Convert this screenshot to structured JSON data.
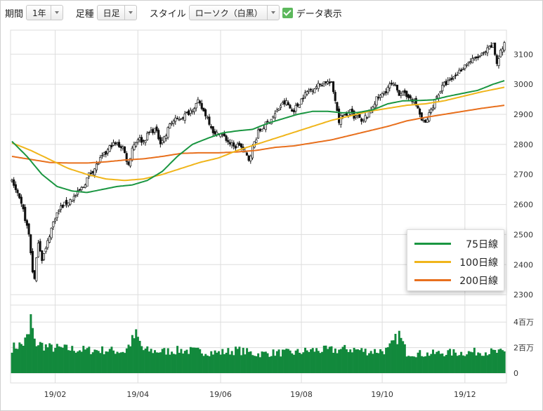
{
  "toolbar": {
    "period_label": "期間",
    "period_value": "1年",
    "bar_label": "足種",
    "bar_value": "日足",
    "style_label": "スタイル",
    "style_value": "ローソク（白黒）",
    "show_data_label": "データ表示",
    "show_data_checked": true
  },
  "colors": {
    "ma75": "#1a9641",
    "ma100": "#f0b51a",
    "ma200": "#e8701e",
    "volume": "#12893c",
    "grid": "#dddddd"
  },
  "chart_data": {
    "type": "candlestick",
    "x_ticks": [
      "19/02",
      "19/04",
      "19/06",
      "19/08",
      "19/10",
      "19/12"
    ],
    "price_axis": {
      "ticks": [
        2300,
        2400,
        2500,
        2600,
        2700,
        2800,
        2900,
        3000,
        3100
      ],
      "range": [
        2270,
        3180
      ]
    },
    "volume_axis": {
      "tick_labels": [
        "4百万",
        "2百万",
        "0"
      ],
      "tick_values": [
        4,
        2,
        0
      ],
      "unit": "百万",
      "range": [
        0,
        5
      ]
    },
    "legend": [
      {
        "label": "75日線",
        "color": "#1a9641"
      },
      {
        "label": "100日線",
        "color": "#f0b51a"
      },
      {
        "label": "200日線",
        "color": "#e8701e"
      }
    ],
    "close_anchors": [
      [
        0,
        2680
      ],
      [
        3,
        2630
      ],
      [
        6,
        2580
      ],
      [
        9,
        2500
      ],
      [
        11,
        2380
      ],
      [
        12,
        2350
      ],
      [
        14,
        2480
      ],
      [
        16,
        2420
      ],
      [
        18,
        2450
      ],
      [
        20,
        2500
      ],
      [
        23,
        2560
      ],
      [
        26,
        2590
      ],
      [
        30,
        2610
      ],
      [
        34,
        2630
      ],
      [
        38,
        2660
      ],
      [
        41,
        2700
      ],
      [
        44,
        2720
      ],
      [
        47,
        2750
      ],
      [
        50,
        2770
      ],
      [
        53,
        2800
      ],
      [
        56,
        2800
      ],
      [
        59,
        2790
      ],
      [
        62,
        2730
      ],
      [
        64,
        2790
      ],
      [
        67,
        2820
      ],
      [
        70,
        2810
      ],
      [
        73,
        2840
      ],
      [
        76,
        2850
      ],
      [
        79,
        2810
      ],
      [
        82,
        2830
      ],
      [
        84,
        2870
      ],
      [
        87,
        2880
      ],
      [
        90,
        2890
      ],
      [
        93,
        2900
      ],
      [
        96,
        2920
      ],
      [
        99,
        2940
      ],
      [
        101,
        2920
      ],
      [
        104,
        2890
      ],
      [
        106,
        2860
      ],
      [
        108,
        2830
      ],
      [
        110,
        2840
      ],
      [
        112,
        2830
      ],
      [
        115,
        2810
      ],
      [
        118,
        2790
      ],
      [
        121,
        2800
      ],
      [
        124,
        2770
      ],
      [
        126,
        2750
      ],
      [
        128,
        2790
      ],
      [
        131,
        2840
      ],
      [
        134,
        2860
      ],
      [
        137,
        2880
      ],
      [
        140,
        2900
      ],
      [
        143,
        2930
      ],
      [
        146,
        2940
      ],
      [
        149,
        2910
      ],
      [
        152,
        2930
      ],
      [
        155,
        2960
      ],
      [
        158,
        2980
      ],
      [
        161,
        2990
      ],
      [
        164,
        3000
      ],
      [
        167,
        3010
      ],
      [
        170,
        3000
      ],
      [
        172,
        2950
      ],
      [
        174,
        2880
      ],
      [
        176,
        2900
      ],
      [
        178,
        2890
      ],
      [
        180,
        2920
      ],
      [
        182,
        2880
      ],
      [
        184,
        2900
      ],
      [
        186,
        2870
      ],
      [
        188,
        2890
      ],
      [
        190,
        2900
      ],
      [
        192,
        2930
      ],
      [
        194,
        2950
      ],
      [
        196,
        2960
      ],
      [
        198,
        2970
      ],
      [
        200,
        2990
      ],
      [
        202,
        3000
      ],
      [
        204,
        2990
      ],
      [
        206,
        2970
      ],
      [
        208,
        2980
      ],
      [
        210,
        2950
      ],
      [
        212,
        2960
      ],
      [
        214,
        2940
      ],
      [
        216,
        2920
      ],
      [
        218,
        2880
      ],
      [
        220,
        2870
      ],
      [
        222,
        2900
      ],
      [
        224,
        2930
      ],
      [
        226,
        2960
      ],
      [
        228,
        2980
      ],
      [
        230,
        3000
      ],
      [
        233,
        3010
      ],
      [
        236,
        3030
      ],
      [
        239,
        3050
      ],
      [
        242,
        3070
      ],
      [
        245,
        3080
      ],
      [
        248,
        3090
      ],
      [
        251,
        3100
      ],
      [
        254,
        3120
      ],
      [
        256,
        3130
      ],
      [
        258,
        3070
      ],
      [
        260,
        3110
      ],
      [
        262,
        3130
      ]
    ],
    "ma75_anchors": [
      [
        0,
        2810
      ],
      [
        8,
        2760
      ],
      [
        16,
        2700
      ],
      [
        24,
        2660
      ],
      [
        32,
        2645
      ],
      [
        40,
        2640
      ],
      [
        48,
        2650
      ],
      [
        56,
        2660
      ],
      [
        64,
        2665
      ],
      [
        72,
        2680
      ],
      [
        80,
        2710
      ],
      [
        88,
        2760
      ],
      [
        96,
        2800
      ],
      [
        104,
        2820
      ],
      [
        112,
        2838
      ],
      [
        120,
        2845
      ],
      [
        128,
        2850
      ],
      [
        136,
        2870
      ],
      [
        144,
        2885
      ],
      [
        152,
        2900
      ],
      [
        160,
        2910
      ],
      [
        168,
        2910
      ],
      [
        176,
        2905
      ],
      [
        184,
        2906
      ],
      [
        192,
        2915
      ],
      [
        200,
        2935
      ],
      [
        208,
        2945
      ],
      [
        216,
        2946
      ],
      [
        224,
        2948
      ],
      [
        232,
        2960
      ],
      [
        240,
        2970
      ],
      [
        248,
        2980
      ],
      [
        256,
        3000
      ],
      [
        262,
        3012
      ]
    ],
    "ma100_anchors": [
      [
        0,
        2805
      ],
      [
        10,
        2780
      ],
      [
        20,
        2750
      ],
      [
        30,
        2720
      ],
      [
        40,
        2700
      ],
      [
        50,
        2685
      ],
      [
        60,
        2680
      ],
      [
        70,
        2685
      ],
      [
        80,
        2700
      ],
      [
        90,
        2720
      ],
      [
        100,
        2740
      ],
      [
        110,
        2755
      ],
      [
        120,
        2780
      ],
      [
        130,
        2800
      ],
      [
        140,
        2820
      ],
      [
        150,
        2840
      ],
      [
        160,
        2860
      ],
      [
        170,
        2880
      ],
      [
        180,
        2895
      ],
      [
        190,
        2910
      ],
      [
        200,
        2920
      ],
      [
        210,
        2930
      ],
      [
        220,
        2935
      ],
      [
        230,
        2945
      ],
      [
        240,
        2960
      ],
      [
        250,
        2975
      ],
      [
        262,
        2990
      ]
    ],
    "ma200_anchors": [
      [
        0,
        2760
      ],
      [
        10,
        2750
      ],
      [
        20,
        2740
      ],
      [
        30,
        2738
      ],
      [
        40,
        2738
      ],
      [
        50,
        2742
      ],
      [
        60,
        2748
      ],
      [
        70,
        2752
      ],
      [
        80,
        2760
      ],
      [
        90,
        2770
      ],
      [
        100,
        2772
      ],
      [
        110,
        2772
      ],
      [
        120,
        2775
      ],
      [
        130,
        2780
      ],
      [
        140,
        2790
      ],
      [
        150,
        2795
      ],
      [
        160,
        2805
      ],
      [
        170,
        2815
      ],
      [
        180,
        2830
      ],
      [
        190,
        2845
      ],
      [
        200,
        2860
      ],
      [
        210,
        2878
      ],
      [
        220,
        2890
      ],
      [
        230,
        2900
      ],
      [
        240,
        2910
      ],
      [
        250,
        2920
      ],
      [
        262,
        2930
      ]
    ],
    "volume_anchors": [
      [
        0,
        2.0
      ],
      [
        6,
        2.3
      ],
      [
        9,
        3.0
      ],
      [
        10,
        4.3
      ],
      [
        12,
        2.4
      ],
      [
        20,
        2.0
      ],
      [
        30,
        1.9
      ],
      [
        40,
        1.8
      ],
      [
        50,
        1.8
      ],
      [
        60,
        1.7
      ],
      [
        66,
        3.0
      ],
      [
        70,
        1.8
      ],
      [
        80,
        1.7
      ],
      [
        90,
        1.8
      ],
      [
        100,
        1.7
      ],
      [
        110,
        1.6
      ],
      [
        120,
        1.8
      ],
      [
        130,
        1.5
      ],
      [
        140,
        1.6
      ],
      [
        150,
        1.6
      ],
      [
        160,
        1.8
      ],
      [
        170,
        1.8
      ],
      [
        180,
        1.9
      ],
      [
        190,
        1.7
      ],
      [
        200,
        1.8
      ],
      [
        206,
        3.0
      ],
      [
        210,
        1.6
      ],
      [
        220,
        1.5
      ],
      [
        230,
        1.6
      ],
      [
        240,
        1.6
      ],
      [
        250,
        1.7
      ],
      [
        262,
        1.6
      ]
    ],
    "bars": 263
  }
}
